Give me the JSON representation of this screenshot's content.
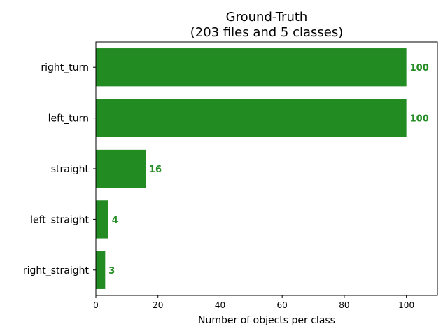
{
  "chart_data": {
    "type": "bar",
    "orientation": "horizontal",
    "title": "Ground-Truth",
    "subtitle": "(203 files and 5 classes)",
    "xlabel": "Number of objects per class",
    "ylabel": "",
    "categories": [
      "right_turn",
      "left_turn",
      "straight",
      "left_straight",
      "right_straight"
    ],
    "values": [
      100,
      100,
      16,
      4,
      3
    ],
    "data_labels": [
      "100",
      "100",
      "16",
      "4",
      "3"
    ],
    "xlim": [
      0,
      110
    ],
    "xticks": [
      0,
      20,
      40,
      60,
      80,
      100
    ],
    "xtick_labels": [
      "0",
      "20",
      "40",
      "60",
      "80",
      "100"
    ],
    "grid": false,
    "bar_color": "#228b22",
    "label_color": "#228b22"
  }
}
